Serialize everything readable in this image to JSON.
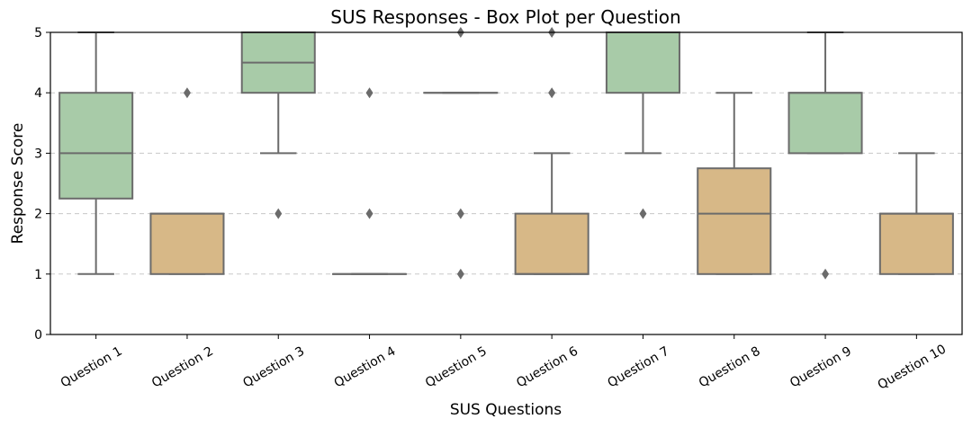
{
  "chart_data": {
    "type": "box",
    "title": "SUS Responses - Box Plot per Question",
    "xlabel": "SUS Questions",
    "ylabel": "Response Score",
    "ylim": [
      0,
      5
    ],
    "yticks": [
      "0",
      "1",
      "2",
      "3",
      "4",
      "5"
    ],
    "grid": "y-dashed",
    "colors": {
      "odd": "#a8cba8",
      "even": "#d7b887",
      "edge": "#6b6b6b"
    },
    "categories": [
      "Question 1",
      "Question 2",
      "Question 3",
      "Question 4",
      "Question 5",
      "Question 6",
      "Question 7",
      "Question 8",
      "Question 9",
      "Question 10"
    ],
    "boxes": [
      {
        "q1": 2.25,
        "median": 3,
        "q3": 4,
        "whisker_low": 1,
        "whisker_high": 5,
        "fliers": []
      },
      {
        "q1": 1,
        "median": 2,
        "q3": 2,
        "whisker_low": 1,
        "whisker_high": 2,
        "fliers": [
          4
        ]
      },
      {
        "q1": 4,
        "median": 4.5,
        "q3": 5,
        "whisker_low": 3,
        "whisker_high": 5,
        "fliers": [
          2
        ]
      },
      {
        "q1": 1,
        "median": 1,
        "q3": 1,
        "whisker_low": 1,
        "whisker_high": 1,
        "fliers": [
          4,
          2
        ]
      },
      {
        "q1": 4,
        "median": 4,
        "q3": 4,
        "whisker_low": 4,
        "whisker_high": 4,
        "fliers": [
          5,
          2,
          1
        ]
      },
      {
        "q1": 1,
        "median": 1,
        "q3": 2,
        "whisker_low": 1,
        "whisker_high": 3,
        "fliers": [
          5,
          4
        ]
      },
      {
        "q1": 4,
        "median": 5,
        "q3": 5,
        "whisker_low": 3,
        "whisker_high": 5,
        "fliers": [
          2
        ]
      },
      {
        "q1": 1,
        "median": 2,
        "q3": 2.75,
        "whisker_low": 1,
        "whisker_high": 4,
        "fliers": []
      },
      {
        "q1": 3,
        "median": 4,
        "q3": 4,
        "whisker_low": 3,
        "whisker_high": 5,
        "fliers": [
          1
        ]
      },
      {
        "q1": 1,
        "median": 2,
        "q3": 2,
        "whisker_low": 1,
        "whisker_high": 3,
        "fliers": []
      }
    ]
  }
}
